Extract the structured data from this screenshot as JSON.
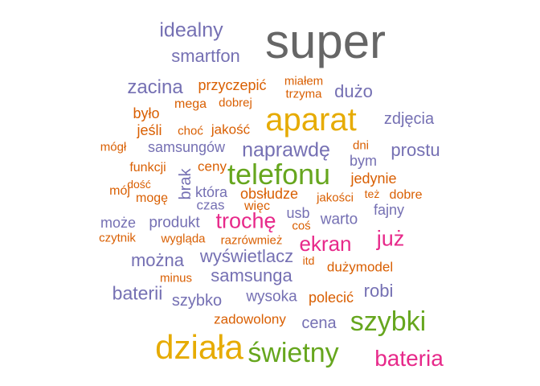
{
  "palette": {
    "gray": "#666666",
    "orange": "#d95f02",
    "purple": "#7570b3",
    "magenta": "#e7298a",
    "green": "#66a61e",
    "gold": "#e6ab02"
  },
  "words": [
    {
      "text": "super",
      "color": "gray"
    },
    {
      "text": "idealny",
      "color": "purple"
    },
    {
      "text": "smartfon",
      "color": "purple"
    },
    {
      "text": "zacina",
      "color": "purple"
    },
    {
      "text": "przyczepić",
      "color": "orange"
    },
    {
      "text": "miałem",
      "color": "orange"
    },
    {
      "text": "trzyma",
      "color": "orange"
    },
    {
      "text": "dużo",
      "color": "purple"
    },
    {
      "text": "mega",
      "color": "orange"
    },
    {
      "text": "dobrej",
      "color": "orange"
    },
    {
      "text": "aparat",
      "color": "gold"
    },
    {
      "text": "zdjęcia",
      "color": "purple"
    },
    {
      "text": "było",
      "color": "orange"
    },
    {
      "text": "jeśli",
      "color": "orange"
    },
    {
      "text": "choć",
      "color": "orange"
    },
    {
      "text": "jakość",
      "color": "orange"
    },
    {
      "text": "mógł",
      "color": "orange"
    },
    {
      "text": "samsungów",
      "color": "purple"
    },
    {
      "text": "naprawdę",
      "color": "purple"
    },
    {
      "text": "dni",
      "color": "orange"
    },
    {
      "text": "prostu",
      "color": "purple"
    },
    {
      "text": "bym",
      "color": "purple"
    },
    {
      "text": "funkcji",
      "color": "orange"
    },
    {
      "text": "ceny",
      "color": "orange"
    },
    {
      "text": "telefonu",
      "color": "green"
    },
    {
      "text": "jedynie",
      "color": "orange"
    },
    {
      "text": "dość",
      "color": "orange"
    },
    {
      "text": "mój",
      "color": "orange"
    },
    {
      "text": "mogę",
      "color": "orange"
    },
    {
      "text": "brak",
      "color": "purple"
    },
    {
      "text": "która",
      "color": "purple"
    },
    {
      "text": "obsłudze",
      "color": "orange"
    },
    {
      "text": "jakości",
      "color": "orange"
    },
    {
      "text": "też",
      "color": "orange"
    },
    {
      "text": "dobre",
      "color": "orange"
    },
    {
      "text": "czas",
      "color": "purple"
    },
    {
      "text": "więc",
      "color": "orange"
    },
    {
      "text": "fajny",
      "color": "purple"
    },
    {
      "text": "może",
      "color": "purple"
    },
    {
      "text": "produkt",
      "color": "purple"
    },
    {
      "text": "trochę",
      "color": "magenta"
    },
    {
      "text": "usb",
      "color": "purple"
    },
    {
      "text": "warto",
      "color": "purple"
    },
    {
      "text": "coś",
      "color": "orange"
    },
    {
      "text": "czytnik",
      "color": "orange"
    },
    {
      "text": "wygląda",
      "color": "orange"
    },
    {
      "text": "razrówmież",
      "color": "orange"
    },
    {
      "text": "ekran",
      "color": "magenta"
    },
    {
      "text": "już",
      "color": "magenta"
    },
    {
      "text": "można",
      "color": "purple"
    },
    {
      "text": "wyświetlacz",
      "color": "purple"
    },
    {
      "text": "itd",
      "color": "orange"
    },
    {
      "text": "dużymodel",
      "color": "orange"
    },
    {
      "text": "minus",
      "color": "orange"
    },
    {
      "text": "samsunga",
      "color": "purple"
    },
    {
      "text": "baterii",
      "color": "purple"
    },
    {
      "text": "robi",
      "color": "purple"
    },
    {
      "text": "szybko",
      "color": "purple"
    },
    {
      "text": "wysoka",
      "color": "purple"
    },
    {
      "text": "polecić",
      "color": "orange"
    },
    {
      "text": "zadowolony",
      "color": "orange"
    },
    {
      "text": "cena",
      "color": "purple"
    },
    {
      "text": "szybki",
      "color": "green"
    },
    {
      "text": "działa",
      "color": "gold"
    },
    {
      "text": "świetny",
      "color": "green"
    },
    {
      "text": "bateria",
      "color": "magenta"
    }
  ]
}
